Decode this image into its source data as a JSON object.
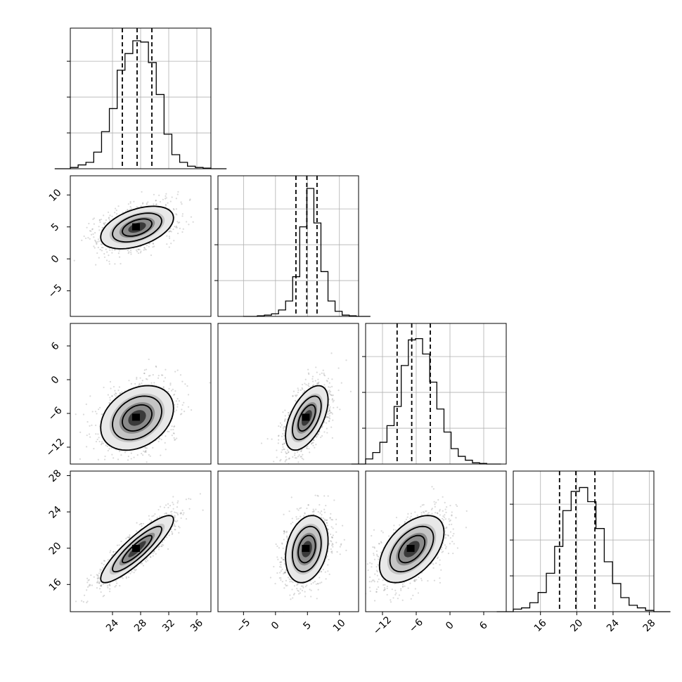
{
  "chart_data": {
    "type": "corner",
    "title": "",
    "parameters": [
      {
        "name": "",
        "mean": 27.5,
        "sd": 2.8,
        "range": [
          18,
          38
        ],
        "ticks": [
          24,
          28,
          32,
          36
        ],
        "tick_labels": [
          "24",
          "28",
          "32",
          "36"
        ],
        "quantiles": [
          25.4,
          27.5,
          29.6
        ],
        "hist_values": [
          0.01,
          0.03,
          0.05,
          0.13,
          0.29,
          0.47,
          0.77,
          0.9,
          1.0,
          0.99,
          0.83,
          0.58,
          0.27,
          0.11,
          0.05,
          0.02,
          0.01,
          0.005
        ]
      },
      {
        "name": "",
        "mean": 4.9,
        "sd": 1.8,
        "range": [
          -9,
          13
        ],
        "ticks": [
          -5,
          0,
          5,
          10
        ],
        "tick_labels": [
          "−5",
          "0",
          "5",
          "10"
        ],
        "quantiles": [
          3.2,
          4.9,
          6.5
        ],
        "hist_values": [
          0.005,
          0.01,
          0.02,
          0.05,
          0.12,
          0.31,
          0.7,
          1.0,
          0.73,
          0.35,
          0.12,
          0.04,
          0.01,
          0.005
        ]
      },
      {
        "name": "",
        "mean": -6.8,
        "sd": 3.1,
        "range": [
          -15,
          10
        ],
        "ticks": [
          -12,
          -6,
          0,
          6
        ],
        "tick_labels": [
          "−12",
          "−6",
          "0",
          "6"
        ],
        "quantiles": [
          -9.4,
          -6.8,
          -3.5
        ],
        "hist_values": [
          0.04,
          0.09,
          0.17,
          0.3,
          0.45,
          0.77,
          0.97,
          0.98,
          0.86,
          0.64,
          0.43,
          0.25,
          0.12,
          0.06,
          0.03,
          0.01,
          0.005
        ]
      },
      {
        "name": "",
        "mean": 19.9,
        "sd": 2.0,
        "range": [
          13,
          28.5
        ],
        "ticks": [
          16,
          20,
          24,
          28
        ],
        "tick_labels": [
          "16",
          "20",
          "24",
          "28"
        ],
        "quantiles": [
          18.1,
          19.9,
          22.0
        ],
        "hist_values": [
          0.02,
          0.03,
          0.07,
          0.15,
          0.3,
          0.51,
          0.79,
          0.94,
          0.97,
          0.86,
          0.65,
          0.39,
          0.22,
          0.11,
          0.05,
          0.03,
          0.01
        ]
      }
    ],
    "correlations": {
      "1-0": 0.45,
      "2-0": 0.3,
      "2-1": 0.55,
      "3-0": 0.88,
      "3-1": 0.25,
      "3-2": 0.5
    },
    "contour_levels": [
      0.5,
      1.0,
      1.5
    ],
    "grid": true
  }
}
